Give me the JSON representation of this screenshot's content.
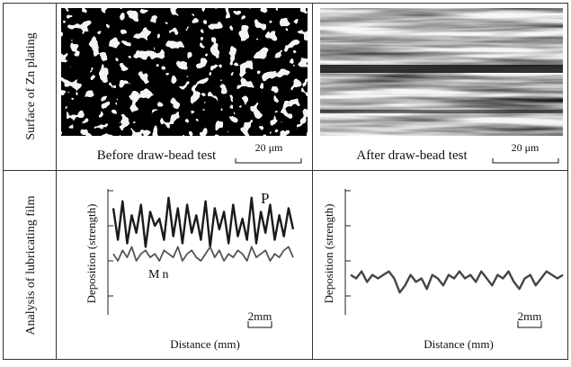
{
  "rows": [
    {
      "header": "Surface of Zn plating",
      "cells": [
        {
          "caption": "Before draw-bead test",
          "scale": "20 μm"
        },
        {
          "caption": "After draw-bead test",
          "scale": "20 μm"
        }
      ]
    },
    {
      "header": "Analysis of lubricating film",
      "cells": [
        {
          "type": "line",
          "y_label": "Deposition (strength)",
          "x_label": "Distance (mm)",
          "scale": "2mm",
          "ylim": [
            0,
            4
          ],
          "yticks": [
            1,
            2,
            3,
            4
          ],
          "series": [
            {
              "name": "P",
              "color": "#1a1a1a",
              "values": [
                3.5,
                2.6,
                3.7,
                2.5,
                3.3,
                2.8,
                3.6,
                2.4,
                3.4,
                3.0,
                3.2,
                2.6,
                3.8,
                2.7,
                3.5,
                2.5,
                3.6,
                2.8,
                3.3,
                2.6,
                3.7,
                2.4,
                3.5,
                2.9,
                3.4,
                2.5,
                3.6,
                2.7,
                3.2,
                2.6,
                3.8,
                2.5,
                3.4,
                2.8,
                3.6,
                2.6,
                3.3,
                2.7,
                3.5,
                2.9
              ]
            },
            {
              "name": "Mn",
              "color": "#555555",
              "values": [
                2.2,
                2.0,
                2.3,
                2.1,
                2.4,
                2.0,
                2.2,
                2.3,
                2.1,
                2.2,
                2.0,
                2.3,
                2.2,
                2.1,
                2.4,
                2.0,
                2.2,
                2.3,
                2.1,
                2.0,
                2.2,
                2.4,
                2.1,
                2.3,
                2.0,
                2.2,
                2.1,
                2.3,
                2.2,
                2.0,
                2.4,
                2.1,
                2.2,
                2.3,
                2.0,
                2.2,
                2.1,
                2.3,
                2.4,
                2.1
              ]
            }
          ]
        },
        {
          "type": "line",
          "y_label": "Deposition (strength)",
          "x_label": "Distance (mm)",
          "scale": "2mm",
          "ylim": [
            0,
            4
          ],
          "yticks": [
            1,
            2,
            3,
            4
          ],
          "series": [
            {
              "color": "#444444",
              "values": [
                1.6,
                1.5,
                1.7,
                1.4,
                1.6,
                1.5,
                1.6,
                1.7,
                1.5,
                1.1,
                1.3,
                1.6,
                1.4,
                1.5,
                1.2,
                1.6,
                1.5,
                1.3,
                1.6,
                1.5,
                1.7,
                1.5,
                1.6,
                1.4,
                1.7,
                1.5,
                1.3,
                1.6,
                1.5,
                1.7,
                1.4,
                1.2,
                1.5,
                1.6,
                1.3,
                1.5,
                1.7,
                1.6,
                1.5,
                1.6
              ]
            }
          ]
        }
      ]
    }
  ]
}
